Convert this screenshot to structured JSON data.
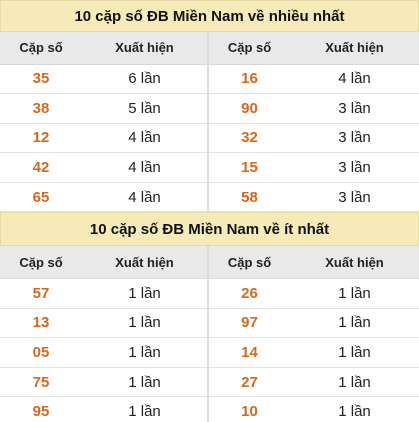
{
  "sections": [
    {
      "title": "10 cặp số ĐB Miền Nam về nhiều nhất",
      "headers": [
        "Cặp số",
        "Xuất hiện",
        "Cặp số",
        "Xuất hiện"
      ],
      "rows": [
        [
          "35",
          "6 lần",
          "16",
          "4 lần"
        ],
        [
          "38",
          "5 lần",
          "90",
          "3 lần"
        ],
        [
          "12",
          "4 lần",
          "32",
          "3 lần"
        ],
        [
          "42",
          "4 lần",
          "15",
          "3 lần"
        ],
        [
          "65",
          "4 lần",
          "58",
          "3 lần"
        ]
      ]
    },
    {
      "title": "10 cặp số ĐB Miền Nam về ít nhất",
      "headers": [
        "Cặp số",
        "Xuất hiện",
        "Cặp số",
        "Xuất hiện"
      ],
      "rows": [
        [
          "57",
          "1 lần",
          "26",
          "1 lần"
        ],
        [
          "13",
          "1 lần",
          "97",
          "1 lần"
        ],
        [
          "05",
          "1 lần",
          "14",
          "1 lần"
        ],
        [
          "75",
          "1 lần",
          "27",
          "1 lần"
        ],
        [
          "95",
          "1 lần",
          "10",
          "1 lần"
        ]
      ]
    }
  ]
}
